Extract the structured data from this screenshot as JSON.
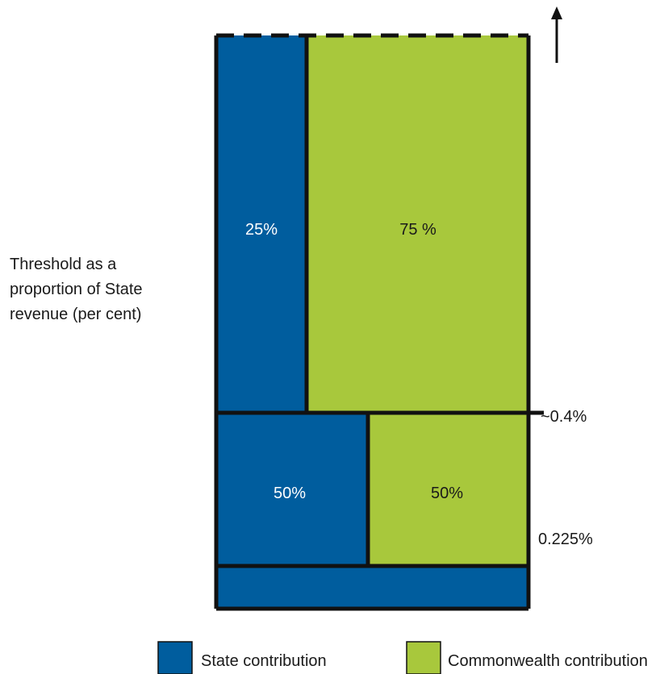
{
  "axis_label": {
    "line1": "Threshold as a",
    "line2": "proportion of State",
    "line3": "revenue (per cent)"
  },
  "thresholds": {
    "upper": "~0.4%",
    "lower": "0.225%"
  },
  "bands": {
    "top": {
      "state_share": "25%",
      "commonwealth_share": "75 %"
    },
    "middle": {
      "state_share": "50%",
      "commonwealth_share": "50%"
    }
  },
  "legend": {
    "state": "State contribution",
    "commonwealth": "Commonwealth contribution"
  },
  "colors": {
    "state": "#005d9e",
    "commonwealth": "#a8c83c",
    "outline": "#111111"
  }
}
